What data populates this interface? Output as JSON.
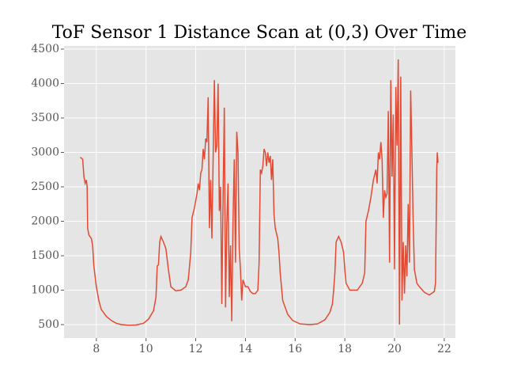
{
  "chart_data": {
    "type": "line",
    "title": "ToF Sensor 1 Distance Scan at (0,3) Over Time",
    "x": [
      7.35,
      7.45,
      7.5,
      7.55,
      7.6,
      7.63,
      7.65,
      7.7,
      7.8,
      7.85,
      7.9,
      8.0,
      8.1,
      8.2,
      8.4,
      8.6,
      8.8,
      9.0,
      9.3,
      9.6,
      9.9,
      10.1,
      10.3,
      10.4,
      10.45,
      10.5,
      10.55,
      10.6,
      10.7,
      10.8,
      10.9,
      11.0,
      11.2,
      11.4,
      11.6,
      11.7,
      11.8,
      11.85,
      11.95,
      12.05,
      12.1,
      12.15,
      12.2,
      12.25,
      12.3,
      12.35,
      12.4,
      12.45,
      12.5,
      12.55,
      12.6,
      12.65,
      12.7,
      12.75,
      12.8,
      12.85,
      12.9,
      12.95,
      13.0,
      13.05,
      13.1,
      13.15,
      13.2,
      13.25,
      13.3,
      13.35,
      13.4,
      13.45,
      13.5,
      13.55,
      13.6,
      13.65,
      13.7,
      13.75,
      13.8,
      13.85,
      13.9,
      14.0,
      14.1,
      14.2,
      14.3,
      14.4,
      14.5,
      14.55,
      14.6,
      14.65,
      14.7,
      14.75,
      14.8,
      14.85,
      14.9,
      14.95,
      15.0,
      15.05,
      15.1,
      15.15,
      15.2,
      15.3,
      15.35,
      15.4,
      15.5,
      15.7,
      15.9,
      16.2,
      16.6,
      16.9,
      17.2,
      17.4,
      17.5,
      17.55,
      17.6,
      17.65,
      17.75,
      17.85,
      17.95,
      18.0,
      18.05,
      18.2,
      18.5,
      18.7,
      18.8,
      18.85,
      18.95,
      19.05,
      19.15,
      19.25,
      19.3,
      19.35,
      19.4,
      19.45,
      19.5,
      19.55,
      19.6,
      19.65,
      19.7,
      19.75,
      19.8,
      19.85,
      19.9,
      19.95,
      20.0,
      20.05,
      20.1,
      20.15,
      20.2,
      20.25,
      20.3,
      20.35,
      20.4,
      20.45,
      20.5,
      20.55,
      20.6,
      20.65,
      20.7,
      20.75,
      20.8,
      20.9,
      21.0,
      21.2,
      21.4,
      21.6,
      21.65,
      21.7,
      21.72,
      21.75
    ],
    "series": [
      {
        "color": "#e24a33",
        "values": [
          2930,
          2900,
          2650,
          2550,
          2600,
          2500,
          1900,
          1800,
          1750,
          1650,
          1350,
          1050,
          850,
          720,
          620,
          560,
          520,
          500,
          490,
          495,
          520,
          580,
          700,
          900,
          1350,
          1370,
          1700,
          1780,
          1700,
          1600,
          1300,
          1050,
          990,
          1000,
          1050,
          1150,
          1550,
          2050,
          2200,
          2400,
          2550,
          2450,
          2700,
          2750,
          3050,
          2900,
          3200,
          3150,
          3800,
          1900,
          2600,
          1750,
          2900,
          4050,
          3000,
          3100,
          4000,
          2150,
          2500,
          800,
          2350,
          3650,
          750,
          1950,
          2550,
          900,
          1650,
          550,
          2000,
          2900,
          1400,
          3300,
          3000,
          1600,
          1300,
          850,
          1150,
          1050,
          1050,
          980,
          950,
          950,
          1000,
          1400,
          2750,
          2700,
          2800,
          3050,
          3000,
          2800,
          3000,
          2850,
          2950,
          2600,
          2900,
          2100,
          1900,
          1750,
          1550,
          1250,
          850,
          650,
          560,
          510,
          500,
          510,
          570,
          680,
          800,
          1000,
          1250,
          1700,
          1780,
          1700,
          1550,
          1300,
          1100,
          1000,
          1000,
          1100,
          1250,
          2000,
          2150,
          2350,
          2600,
          2750,
          2550,
          3000,
          2900,
          3150,
          2900,
          2050,
          2450,
          2350,
          2400,
          3600,
          1400,
          4050,
          2650,
          3550,
          1300,
          3950,
          3100,
          4350,
          500,
          4100,
          850,
          1700,
          950,
          1650,
          1200,
          2250,
          1400,
          3900,
          3000,
          2000,
          1300,
          1100,
          1050,
          970,
          930,
          980,
          1100,
          2750,
          3000,
          2850
        ]
      }
    ],
    "xlim": [
      6.7,
      22.45
    ],
    "xticks": [
      8,
      10,
      12,
      14,
      16,
      18,
      20,
      22
    ],
    "ylim": [
      305,
      4546
    ],
    "yticks": [
      500,
      1000,
      1500,
      2000,
      2500,
      3000,
      3500,
      4000,
      4500
    ],
    "grid": true
  }
}
